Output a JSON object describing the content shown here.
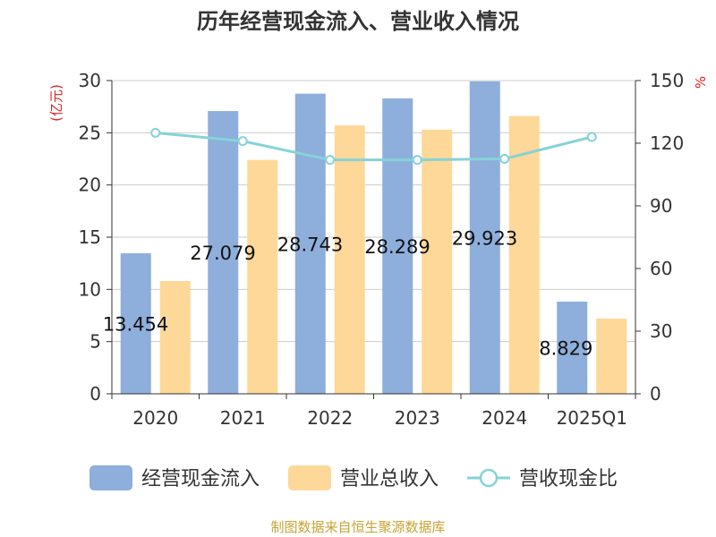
{
  "chart_data": {
    "type": "bar",
    "title": "历年经营现金流入、营业收入情况",
    "categories": [
      "2020",
      "2021",
      "2022",
      "2023",
      "2024",
      "2025Q1"
    ],
    "series": [
      {
        "name": "经营现金流入",
        "type": "bar",
        "axis": "left",
        "color": "#8eaedb",
        "values": [
          13.454,
          27.079,
          28.743,
          28.289,
          29.923,
          8.829
        ]
      },
      {
        "name": "营业总收入",
        "type": "bar",
        "axis": "left",
        "color": "#fdd898",
        "values": [
          10.8,
          22.4,
          25.7,
          25.3,
          26.6,
          7.2
        ]
      },
      {
        "name": "营收现金比",
        "type": "line",
        "axis": "right",
        "color": "#85d3d8",
        "values": [
          125,
          121,
          112,
          112,
          112.5,
          123
        ]
      }
    ],
    "data_labels": [
      "13.454",
      "27.079",
      "28.743",
      "28.289",
      "29.923",
      "8.829"
    ],
    "y_left": {
      "label": "(亿元)",
      "min": 0,
      "max": 30,
      "ticks": [
        "0",
        "5",
        "10",
        "15",
        "20",
        "25",
        "30"
      ]
    },
    "y_right": {
      "label": "%",
      "min": 0,
      "max": 150,
      "ticks": [
        "0",
        "30",
        "60",
        "90",
        "120",
        "150"
      ]
    },
    "grid": true,
    "legend_position": "bottom",
    "source": "制图数据来自恒生聚源数据库"
  }
}
